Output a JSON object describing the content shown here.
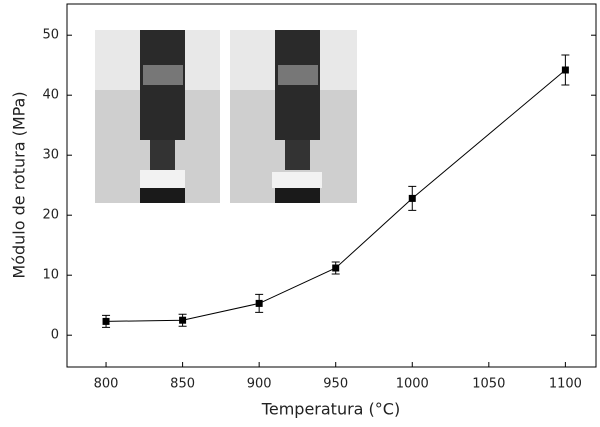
{
  "chart_data": {
    "type": "line",
    "x_label": "Temperatura (°C)",
    "y_label": "Módulo de rotura (MPa)",
    "x": [
      800,
      850,
      900,
      950,
      1000,
      1100
    ],
    "values": [
      2.3,
      2.5,
      5.3,
      11.2,
      22.8,
      44.2
    ],
    "errors": [
      1.0,
      1.0,
      1.5,
      1.0,
      2.0,
      2.5
    ],
    "color": "#000000",
    "xlim": [
      774.5,
      1120
    ],
    "ylim": [
      -5.3,
      55.2
    ],
    "xticks": [
      800,
      850,
      900,
      950,
      1000,
      1050,
      1100
    ],
    "yticks": [
      0,
      10,
      20,
      30,
      40,
      50
    ]
  }
}
